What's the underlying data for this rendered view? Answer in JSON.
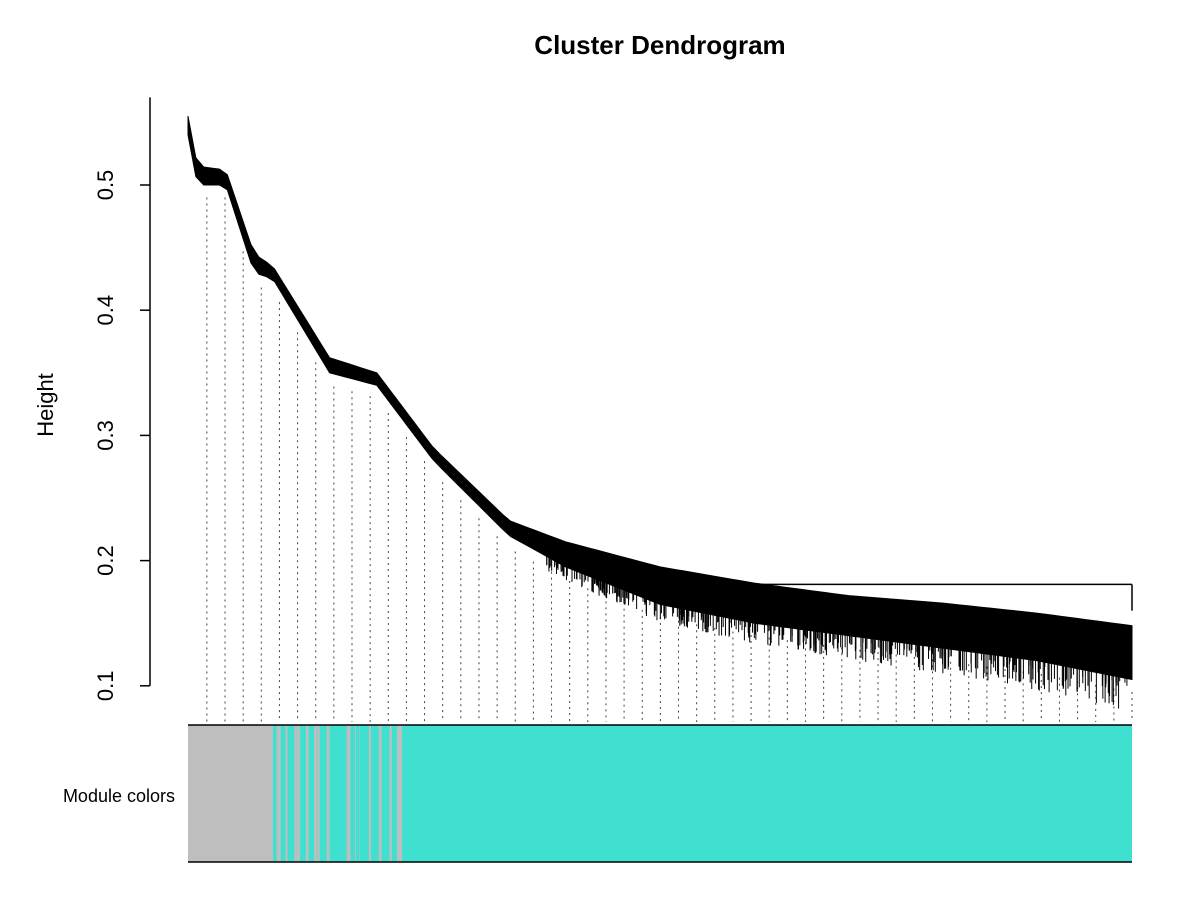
{
  "chart_data": {
    "type": "dendrogram",
    "title": "Cluster Dendrogram",
    "ylabel": "Height",
    "xlabel": "",
    "ylim": [
      0.1,
      0.55
    ],
    "yticks": [
      0.1,
      0.2,
      0.3,
      0.4,
      0.5
    ],
    "yticklabels": [
      "0.1",
      "0.2",
      "0.3",
      "0.4",
      "0.5"
    ],
    "grid": false,
    "envelope": [
      {
        "x": 0.0,
        "upper": 0.555,
        "lower": 0.54
      },
      {
        "x": 0.01,
        "upper": 0.515,
        "lower": 0.5
      },
      {
        "x": 0.04,
        "upper": 0.512,
        "lower": 0.5
      },
      {
        "x": 0.07,
        "upper": 0.445,
        "lower": 0.43
      },
      {
        "x": 0.09,
        "upper": 0.435,
        "lower": 0.425
      },
      {
        "x": 0.15,
        "upper": 0.362,
        "lower": 0.35
      },
      {
        "x": 0.2,
        "upper": 0.35,
        "lower": 0.34
      },
      {
        "x": 0.26,
        "upper": 0.29,
        "lower": 0.28
      },
      {
        "x": 0.34,
        "upper": 0.232,
        "lower": 0.22
      },
      {
        "x": 0.4,
        "upper": 0.215,
        "lower": 0.195
      },
      {
        "x": 0.5,
        "upper": 0.195,
        "lower": 0.165
      },
      {
        "x": 0.6,
        "upper": 0.182,
        "lower": 0.15
      },
      {
        "x": 0.7,
        "upper": 0.172,
        "lower": 0.14
      },
      {
        "x": 0.8,
        "upper": 0.166,
        "lower": 0.13
      },
      {
        "x": 0.9,
        "upper": 0.158,
        "lower": 0.12
      },
      {
        "x": 1.0,
        "upper": 0.148,
        "lower": 0.105
      }
    ],
    "top_bracket": {
      "x_start": 0.6,
      "x_end": 1.0,
      "height": 0.181,
      "right_drop_to": 0.16
    },
    "module_colors": {
      "label": "Module colors",
      "segments": [
        {
          "color": "grey",
          "hex": "#BEBEBE",
          "from": 0.0,
          "to": 0.09
        },
        {
          "color": "turquoise",
          "hex": "#40E0D0",
          "from": 0.09,
          "to": 1.0
        }
      ],
      "mixed_region": {
        "from": 0.09,
        "to": 0.23,
        "colors": [
          "#BEBEBE",
          "#40E0D0"
        ]
      }
    }
  }
}
